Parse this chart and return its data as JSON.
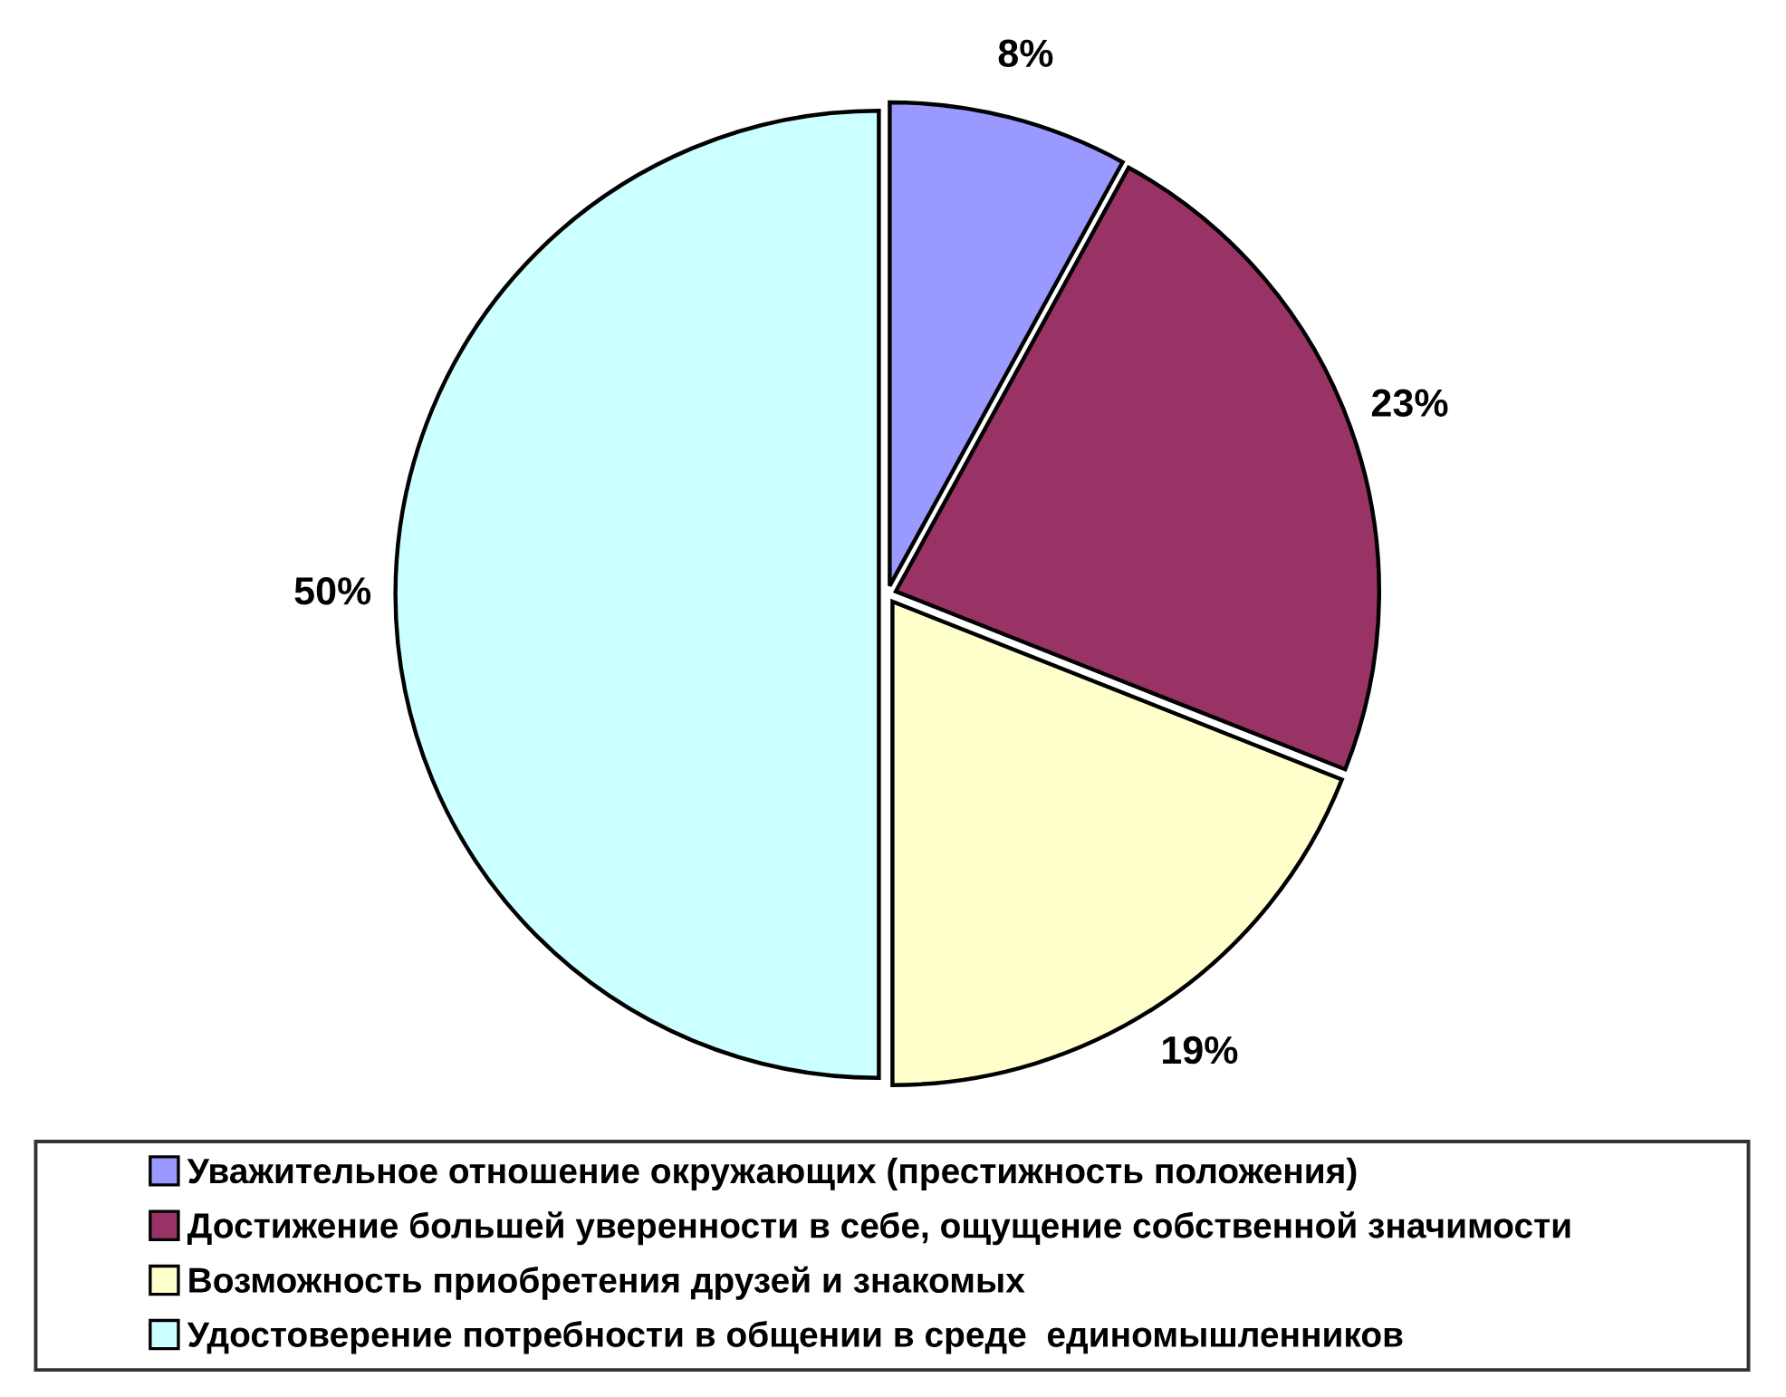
{
  "chart_data": {
    "type": "pie",
    "categories": [
      "Уважительное отношение окружающих (престижность положения)",
      "Достижение большей уверенности в себе, ощущение собственной значимости",
      "Возможность приобретения друзей и знакомых",
      "Удостоверение потребности в общении в среде  единомышленников"
    ],
    "values": [
      8,
      23,
      19,
      50
    ],
    "colors": [
      "#9999ff",
      "#993366",
      "#ffffcc",
      "#ccffff"
    ],
    "value_labels": [
      "8%",
      "23%",
      "19%",
      "50%"
    ],
    "legend": "bottom"
  }
}
